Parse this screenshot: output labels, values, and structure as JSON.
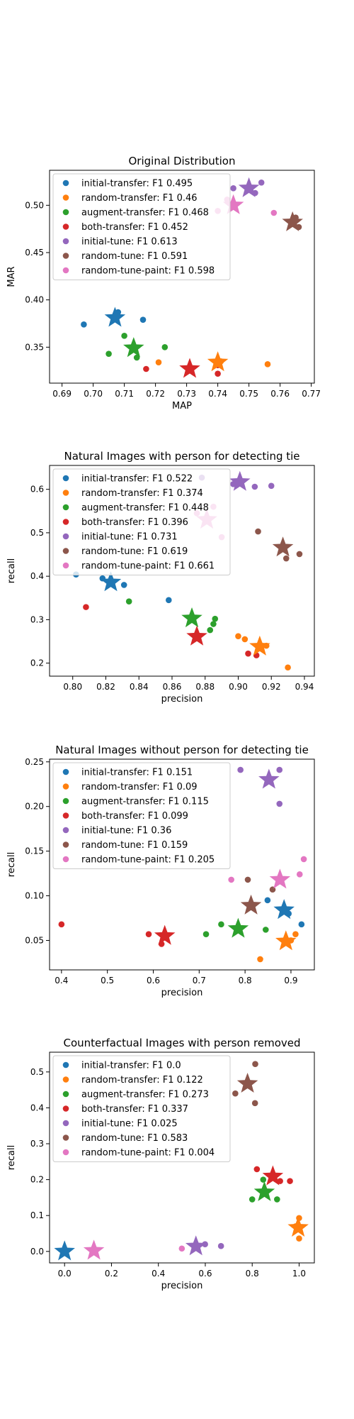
{
  "series_colors": [
    "#1f77b4",
    "#ff7f0e",
    "#2ca02c",
    "#d62728",
    "#9467bd",
    "#8c564b",
    "#e377c2"
  ],
  "chart_data": [
    {
      "type": "scatter",
      "title": "Original Distribution",
      "xlabel": "MAP",
      "ylabel": "MAR",
      "xlim": [
        0.686,
        0.771
      ],
      "ylim": [
        0.312,
        0.537
      ],
      "xticks": [
        "0.69",
        "0.70",
        "0.71",
        "0.72",
        "0.73",
        "0.74",
        "0.75",
        "0.76",
        "0.77"
      ],
      "xtick_values": [
        0.69,
        0.7,
        0.71,
        0.72,
        0.73,
        0.74,
        0.75,
        0.76,
        0.77
      ],
      "yticks": [
        "0.35",
        "0.40",
        "0.45",
        "0.50"
      ],
      "ytick_values": [
        0.35,
        0.4,
        0.45,
        0.5
      ],
      "legend_location": "upper left",
      "series": [
        {
          "name": "initial-transfer: F1 0.495",
          "points": [
            [
              0.697,
              0.374
            ],
            [
              0.708,
              0.387
            ],
            [
              0.716,
              0.379
            ]
          ],
          "star": [
            0.707,
            0.381
          ]
        },
        {
          "name": "random-transfer: F1 0.46",
          "points": [
            [
              0.721,
              0.334
            ],
            [
              0.741,
              0.335
            ],
            [
              0.756,
              0.332
            ]
          ],
          "star": [
            0.74,
            0.334
          ]
        },
        {
          "name": "augment-transfer: F1 0.468",
          "points": [
            [
              0.705,
              0.343
            ],
            [
              0.71,
              0.362
            ],
            [
              0.714,
              0.339
            ],
            [
              0.723,
              0.35
            ]
          ],
          "star": [
            0.713,
            0.349
          ]
        },
        {
          "name": "both-transfer: F1 0.452",
          "points": [
            [
              0.717,
              0.327
            ],
            [
              0.731,
              0.329
            ],
            [
              0.74,
              0.322
            ],
            [
              0.74,
              0.331
            ]
          ],
          "star": [
            0.731,
            0.327
          ]
        },
        {
          "name": "initial-tune: F1 0.613",
          "points": [
            [
              0.745,
              0.518
            ],
            [
              0.752,
              0.513
            ],
            [
              0.754,
              0.524
            ]
          ],
          "star": [
            0.75,
            0.518
          ]
        },
        {
          "name": "random-tune: F1 0.591",
          "points": [
            [
              0.765,
              0.487
            ],
            [
              0.766,
              0.477
            ]
          ],
          "star": [
            0.764,
            0.482
          ]
        },
        {
          "name": "random-tune-paint: F1 0.598",
          "points": [
            [
              0.74,
              0.494
            ],
            [
              0.743,
              0.506
            ],
            [
              0.758,
              0.492
            ]
          ],
          "star": [
            0.745,
            0.5
          ]
        }
      ]
    },
    {
      "type": "scatter",
      "title": "Natural Images with person for detecting tie",
      "xlabel": "precision",
      "ylabel": "recall",
      "xlim": [
        0.786,
        0.946
      ],
      "ylim": [
        0.17,
        0.655
      ],
      "xticks": [
        "0.80",
        "0.82",
        "0.84",
        "0.86",
        "0.88",
        "0.90",
        "0.92",
        "0.94"
      ],
      "xtick_values": [
        0.8,
        0.82,
        0.84,
        0.86,
        0.88,
        0.9,
        0.92,
        0.94
      ],
      "yticks": [
        "0.2",
        "0.3",
        "0.4",
        "0.5",
        "0.6"
      ],
      "ytick_values": [
        0.2,
        0.3,
        0.4,
        0.5,
        0.6
      ],
      "legend_location": "upper left",
      "series": [
        {
          "name": "initial-transfer: F1 0.522",
          "points": [
            [
              0.802,
              0.404
            ],
            [
              0.831,
              0.38
            ],
            [
              0.858,
              0.345
            ],
            [
              0.818,
              0.395
            ]
          ],
          "star": [
            0.823,
            0.386
          ]
        },
        {
          "name": "random-transfer: F1 0.374",
          "points": [
            [
              0.9,
              0.262
            ],
            [
              0.904,
              0.255
            ],
            [
              0.917,
              0.24
            ],
            [
              0.93,
              0.19
            ]
          ],
          "star": [
            0.913,
            0.238
          ]
        },
        {
          "name": "augment-transfer: F1 0.448",
          "points": [
            [
              0.834,
              0.342
            ],
            [
              0.883,
              0.276
            ],
            [
              0.885,
              0.29
            ],
            [
              0.886,
              0.302
            ]
          ],
          "star": [
            0.872,
            0.303
          ]
        },
        {
          "name": "both-transfer: F1 0.396",
          "points": [
            [
              0.808,
              0.329
            ],
            [
              0.906,
              0.222
            ],
            [
              0.911,
              0.218
            ]
          ],
          "star": [
            0.875,
            0.261
          ]
        },
        {
          "name": "initial-tune: F1 0.731",
          "points": [
            [
              0.878,
              0.627
            ],
            [
              0.897,
              0.612
            ],
            [
              0.91,
              0.606
            ],
            [
              0.92,
              0.608
            ]
          ],
          "star": [
            0.901,
            0.617
          ]
        },
        {
          "name": "random-tune: F1 0.619",
          "points": [
            [
              0.912,
              0.503
            ],
            [
              0.929,
              0.441
            ],
            [
              0.937,
              0.451
            ]
          ],
          "star": [
            0.927,
            0.466
          ]
        },
        {
          "name": "random-tune-paint: F1 0.661",
          "points": [
            [
              0.885,
              0.56
            ],
            [
              0.89,
              0.49
            ],
            [
              0.875,
              0.545
            ]
          ],
          "star": [
            0.881,
            0.53
          ]
        }
      ]
    },
    {
      "type": "scatter",
      "title": "Natural Images without person for detecting tie",
      "xlabel": "precision",
      "ylabel": "recall",
      "xlim": [
        0.374,
        0.951
      ],
      "ylim": [
        0.017,
        0.253
      ],
      "xticks": [
        "0.4",
        "0.5",
        "0.6",
        "0.7",
        "0.8",
        "0.9"
      ],
      "xtick_values": [
        0.4,
        0.5,
        0.6,
        0.7,
        0.8,
        0.9
      ],
      "yticks": [
        "0.05",
        "0.10",
        "0.15",
        "0.20",
        "0.25"
      ],
      "ytick_values": [
        0.05,
        0.1,
        0.15,
        0.2,
        0.25
      ],
      "legend_location": "upper left",
      "series": [
        {
          "name": "initial-transfer: F1 0.151",
          "points": [
            [
              0.849,
              0.095
            ],
            [
              0.923,
              0.068
            ],
            [
              0.895,
              0.08
            ]
          ],
          "star": [
            0.885,
            0.084
          ]
        },
        {
          "name": "random-transfer: F1 0.09",
          "points": [
            [
              0.833,
              0.029
            ],
            [
              0.91,
              0.057
            ],
            [
              0.9,
              0.05
            ]
          ],
          "star": [
            0.889,
            0.049
          ]
        },
        {
          "name": "augment-transfer: F1 0.115",
          "points": [
            [
              0.715,
              0.057
            ],
            [
              0.748,
              0.068
            ],
            [
              0.845,
              0.062
            ]
          ],
          "star": [
            0.785,
            0.063
          ]
        },
        {
          "name": "both-transfer: F1 0.099",
          "points": [
            [
              0.4,
              0.068
            ],
            [
              0.59,
              0.057
            ],
            [
              0.618,
              0.046
            ]
          ],
          "star": [
            0.625,
            0.055
          ]
        },
        {
          "name": "initial-tune: F1 0.36",
          "points": [
            [
              0.79,
              0.241
            ],
            [
              0.875,
              0.241
            ],
            [
              0.875,
              0.203
            ]
          ],
          "star": [
            0.852,
            0.23
          ]
        },
        {
          "name": "random-tune: F1 0.159",
          "points": [
            [
              0.806,
              0.118
            ],
            [
              0.86,
              0.107
            ]
          ],
          "star": [
            0.813,
            0.089
          ]
        },
        {
          "name": "random-tune-paint: F1 0.205",
          "points": [
            [
              0.77,
              0.118
            ],
            [
              0.919,
              0.124
            ],
            [
              0.928,
              0.141
            ]
          ],
          "star": [
            0.876,
            0.118
          ]
        }
      ]
    },
    {
      "type": "scatter",
      "title": "Counterfactual Images with person removed",
      "xlabel": "precision",
      "ylabel": "recall",
      "xlim": [
        -0.064,
        1.065
      ],
      "ylim": [
        -0.032,
        0.555
      ],
      "xticks": [
        "0.0",
        "0.2",
        "0.4",
        "0.6",
        "0.8",
        "1.0"
      ],
      "xtick_values": [
        0.0,
        0.2,
        0.4,
        0.6,
        0.8,
        1.0
      ],
      "yticks": [
        "0.0",
        "0.1",
        "0.2",
        "0.3",
        "0.4",
        "0.5"
      ],
      "ytick_values": [
        0.0,
        0.1,
        0.2,
        0.3,
        0.4,
        0.5
      ],
      "legend_location": "upper left",
      "series": [
        {
          "name": "initial-transfer: F1 0.0",
          "points": [],
          "star": [
            0.0,
            0.0
          ]
        },
        {
          "name": "random-transfer: F1 0.122",
          "points": [
            [
              1.0,
              0.093
            ],
            [
              1.0,
              0.036
            ],
            [
              0.985,
              0.07
            ]
          ],
          "star": [
            0.996,
            0.066
          ]
        },
        {
          "name": "augment-transfer: F1 0.273",
          "points": [
            [
              0.8,
              0.145
            ],
            [
              0.847,
              0.2
            ],
            [
              0.906,
              0.145
            ]
          ],
          "star": [
            0.852,
            0.165
          ]
        },
        {
          "name": "both-transfer: F1 0.337",
          "points": [
            [
              0.82,
              0.229
            ],
            [
              0.919,
              0.196
            ],
            [
              0.961,
              0.196
            ]
          ],
          "star": [
            0.888,
            0.209
          ]
        },
        {
          "name": "initial-tune: F1 0.025",
          "points": [
            [
              0.599,
              0.02
            ],
            [
              0.667,
              0.015
            ]
          ],
          "star": [
            0.56,
            0.014
          ]
        },
        {
          "name": "random-tune: F1 0.583",
          "points": [
            [
              0.728,
              0.44
            ],
            [
              0.812,
              0.413
            ],
            [
              0.813,
              0.522
            ]
          ],
          "star": [
            0.78,
            0.467
          ]
        },
        {
          "name": "random-tune-paint: F1 0.004",
          "points": [
            [
              0.5,
              0.008
            ]
          ],
          "star": [
            0.125,
            0.002
          ]
        }
      ]
    }
  ]
}
